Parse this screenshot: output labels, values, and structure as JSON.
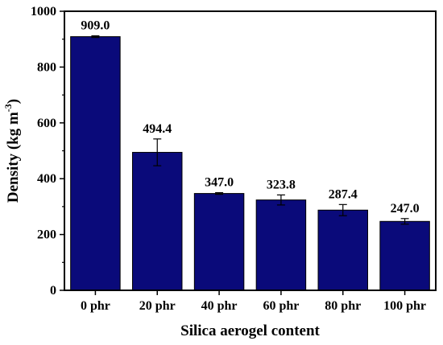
{
  "chart_data": {
    "type": "bar",
    "categories": [
      "0 phr",
      "20 phr",
      "40 phr",
      "60 phr",
      "80 phr",
      "100 phr"
    ],
    "values": [
      909.0,
      494.4,
      347.0,
      323.8,
      287.4,
      247.0
    ],
    "value_labels": [
      "909.0",
      "494.4",
      "347.0",
      "323.8",
      "287.4",
      "247.0"
    ],
    "error": [
      3,
      48,
      3,
      18,
      20,
      10
    ],
    "xlabel": "Silica aerogel content",
    "ylabel": "Density (kg m",
    "ylabel_superscript": "-3",
    "ylabel_suffix": ")",
    "ylim": [
      0,
      1000
    ],
    "yticks": [
      0,
      200,
      400,
      600,
      800,
      1000
    ],
    "grid": false,
    "legend": "none",
    "bar_color": "#0a0a7a",
    "bar_edge_color": "#000000"
  }
}
